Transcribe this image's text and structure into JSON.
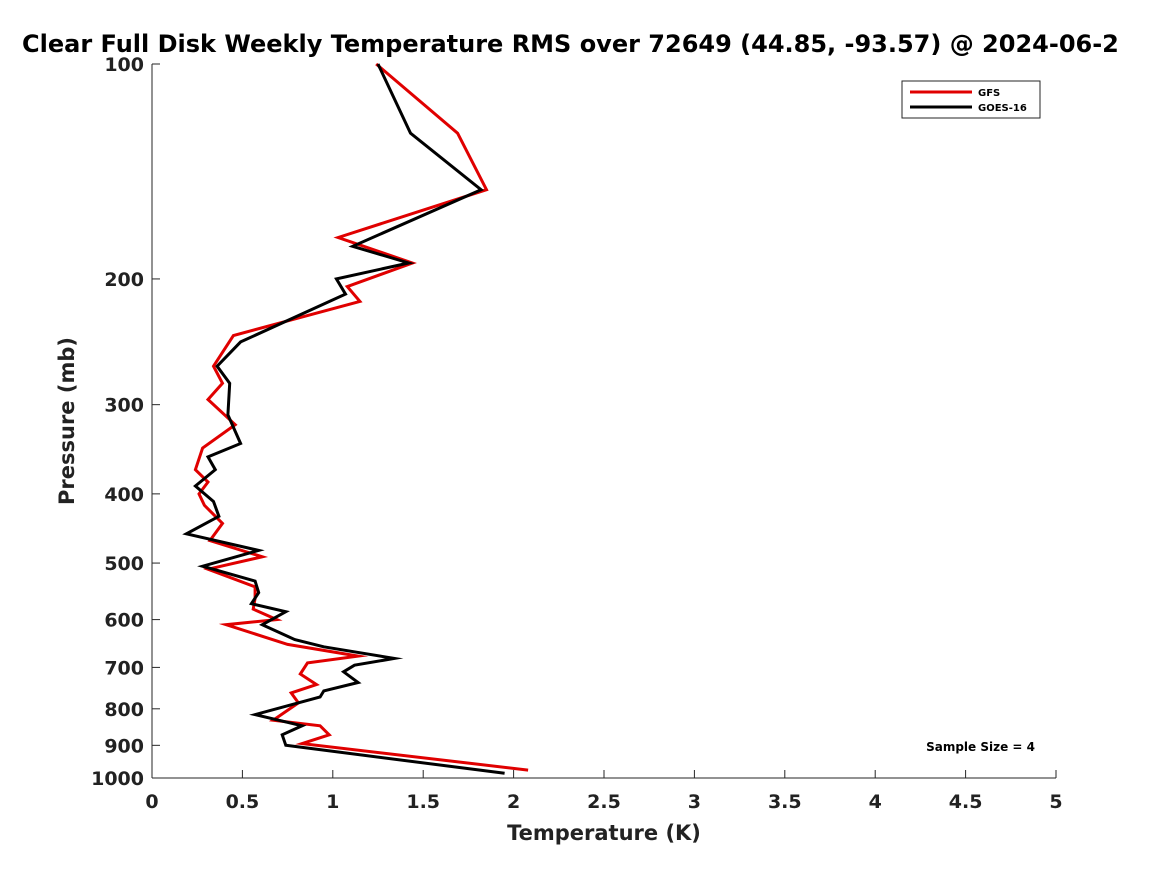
{
  "chart_data": {
    "type": "line",
    "title": "Clear Full Disk Weekly Temperature RMS over 72649 (44.85, -93.57) @ 2024-06-2",
    "xlabel": "Temperature (K)",
    "ylabel": "Pressure (mb)",
    "xlim": [
      0,
      5
    ],
    "ylim": [
      100,
      1000
    ],
    "yscale": "log",
    "y_reversed": true,
    "xticks": [
      0,
      0.5,
      1,
      1.5,
      2,
      2.5,
      3,
      3.5,
      4,
      4.5,
      5
    ],
    "xtick_labels": [
      "0",
      "0.5",
      "1",
      "1.5",
      "2",
      "2.5",
      "3",
      "3.5",
      "4",
      "4.5",
      "5"
    ],
    "yticks": [
      100,
      200,
      300,
      400,
      500,
      600,
      700,
      800,
      900,
      1000
    ],
    "ytick_labels": [
      "100",
      "200",
      "300",
      "400",
      "500",
      "600",
      "700",
      "800",
      "900",
      "1000"
    ],
    "legend_position": "top-right",
    "annotation": "Sample Size = 4",
    "series": [
      {
        "name": "GFS",
        "color": "#e00000",
        "x": [
          1.24,
          1.69,
          1.85,
          1.03,
          1.44,
          1.08,
          1.15,
          0.45,
          0.34,
          0.39,
          0.31,
          0.46,
          0.28,
          0.24,
          0.31,
          0.26,
          0.29,
          0.39,
          0.32,
          0.61,
          0.31,
          0.57,
          0.57,
          0.56,
          0.69,
          0.41,
          0.75,
          1.14,
          0.86,
          0.82,
          0.91,
          0.77,
          0.81,
          0.67,
          0.93,
          0.98,
          0.83,
          2.08
        ],
        "y": [
          100,
          125,
          150,
          175,
          190,
          205,
          215,
          240,
          265,
          280,
          295,
          320,
          345,
          370,
          385,
          400,
          415,
          440,
          465,
          490,
          510,
          540,
          560,
          580,
          600,
          610,
          650,
          675,
          690,
          715,
          740,
          760,
          785,
          830,
          845,
          870,
          895,
          975
        ]
      },
      {
        "name": "GOES-16",
        "color": "#000000",
        "x": [
          1.25,
          1.43,
          1.82,
          1.11,
          1.42,
          1.02,
          1.07,
          0.49,
          0.36,
          0.43,
          0.42,
          0.49,
          0.31,
          0.35,
          0.24,
          0.34,
          0.37,
          0.19,
          0.59,
          0.28,
          0.57,
          0.59,
          0.55,
          0.74,
          0.61,
          0.79,
          0.95,
          1.34,
          1.12,
          1.06,
          1.14,
          0.95,
          0.93,
          0.57,
          0.83,
          0.72,
          0.74,
          1.95
        ],
        "y": [
          100,
          125,
          150,
          180,
          190,
          200,
          210,
          245,
          265,
          280,
          310,
          340,
          355,
          370,
          390,
          410,
          430,
          455,
          480,
          505,
          530,
          550,
          570,
          585,
          610,
          640,
          655,
          680,
          695,
          710,
          735,
          755,
          770,
          815,
          845,
          870,
          900,
          985
        ]
      }
    ]
  }
}
